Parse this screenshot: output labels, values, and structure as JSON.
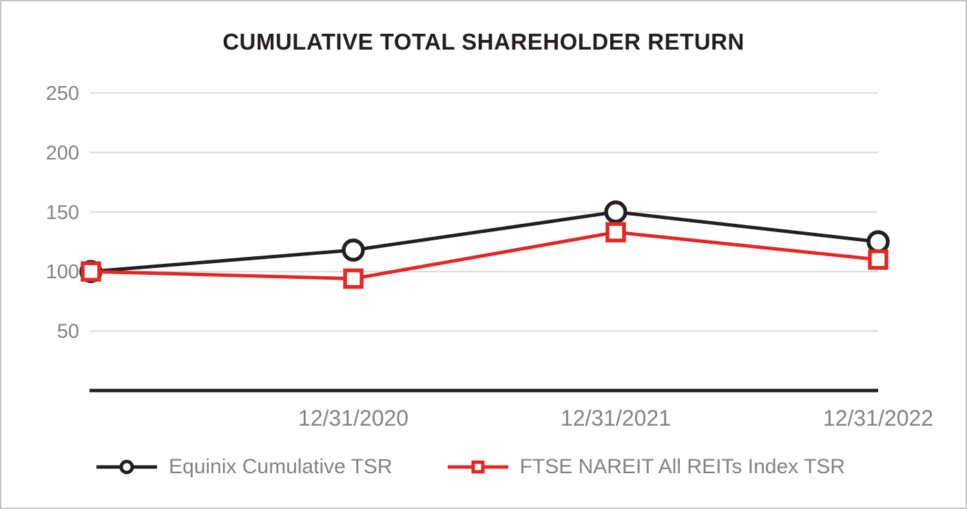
{
  "chart_data": {
    "type": "line",
    "title": "CUMULATIVE TOTAL SHAREHOLDER RETURN",
    "x_labels": [
      "",
      "12/31/2020",
      "12/31/2021",
      "12/31/2022"
    ],
    "y_ticks": [
      250,
      200,
      150,
      100,
      50
    ],
    "ylim": [
      0,
      260
    ],
    "grid": true,
    "legend_position": "bottom",
    "series": [
      {
        "name": "Equinix Cumulative TSR",
        "marker": "circle",
        "color": "#231f20",
        "values": [
          100,
          118,
          150,
          125
        ]
      },
      {
        "name": "FTSE NAREIT All REITs Index TSR",
        "marker": "square",
        "color": "#e32726",
        "values": [
          100,
          94,
          133,
          110
        ]
      }
    ],
    "colors": {
      "gridline": "#d9d9d9",
      "axis": "#231f20",
      "tick_text": "#808285",
      "marker_fill": "#ffffff"
    }
  }
}
